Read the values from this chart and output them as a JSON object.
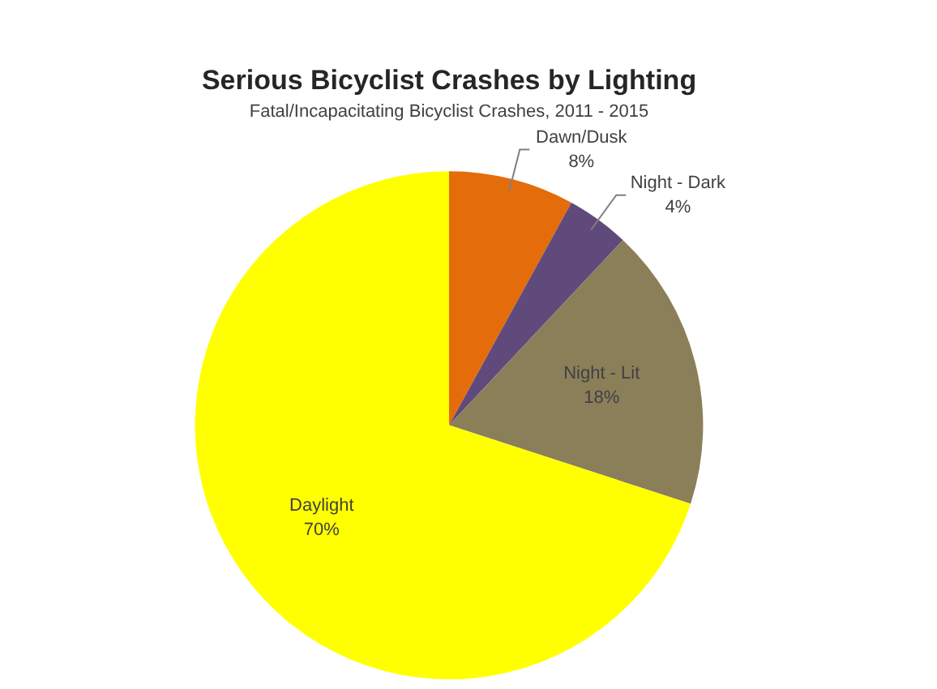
{
  "chart_data": {
    "type": "pie",
    "title": "Serious Bicyclist Crashes by Lighting",
    "subtitle": "Fatal/Incapacitating Bicyclist Crashes, 2011 - 2015",
    "categories": [
      "Dawn/Dusk",
      "Night - Dark",
      "Night - Lit",
      "Daylight"
    ],
    "values": [
      8,
      4,
      18,
      70
    ],
    "value_labels": [
      "8%",
      "4%",
      "18%",
      "70%"
    ],
    "colors": [
      "#e46c0a",
      "#604a7b",
      "#8b7f5a",
      "#ffff00"
    ]
  }
}
